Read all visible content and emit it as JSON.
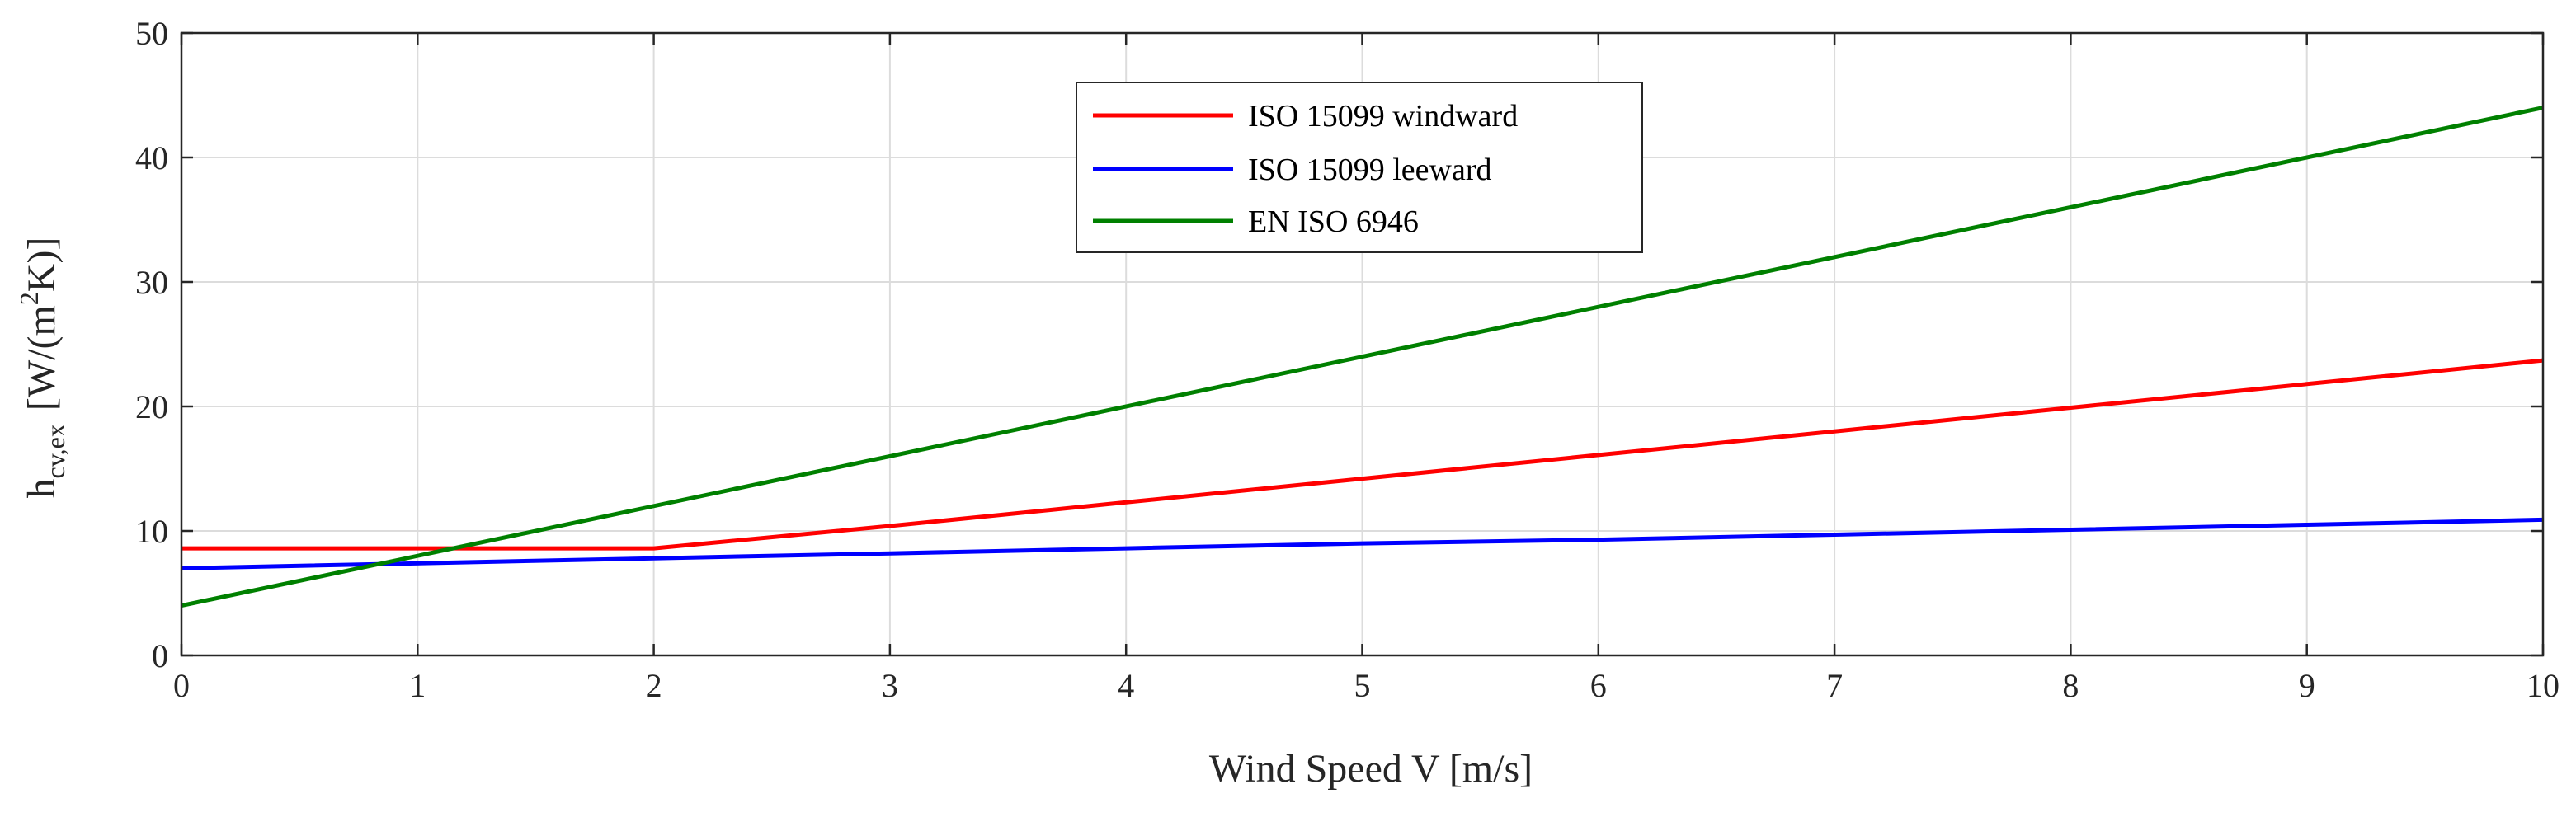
{
  "chart_data": {
    "type": "line",
    "title": "",
    "xlabel": "Wind Speed V [m/s]",
    "ylabel": {
      "prefix": "h",
      "subscript": "cv,ex",
      "unit_open": "[W/(m",
      "unit_sup": "2",
      "unit_close": "K)]"
    },
    "xlim": [
      0,
      10
    ],
    "ylim": [
      0,
      50
    ],
    "xticks": [
      0,
      1,
      2,
      3,
      4,
      5,
      6,
      7,
      8,
      9,
      10
    ],
    "yticks": [
      0,
      10,
      20,
      30,
      40,
      50
    ],
    "grid": true,
    "legend_position": "top-center",
    "series": [
      {
        "name": "ISO 15099 windward",
        "color": "#ff0000",
        "x": [
          0,
          2,
          3,
          4,
          5,
          6,
          7,
          8,
          9,
          10
        ],
        "y": [
          8.6,
          8.6,
          10.4,
          12.3,
          14.2,
          16.1,
          18.0,
          19.9,
          21.8,
          23.7
        ]
      },
      {
        "name": "ISO 15099 leeward",
        "color": "#0000ff",
        "x": [
          0,
          2,
          3,
          4,
          5,
          6,
          7,
          8,
          9,
          10
        ],
        "y": [
          7.0,
          7.8,
          8.2,
          8.6,
          9.0,
          9.3,
          9.7,
          10.1,
          10.5,
          10.9
        ]
      },
      {
        "name": "EN ISO 6946",
        "color": "#008000",
        "x": [
          0,
          10
        ],
        "y": [
          4.0,
          44.0
        ]
      }
    ]
  }
}
